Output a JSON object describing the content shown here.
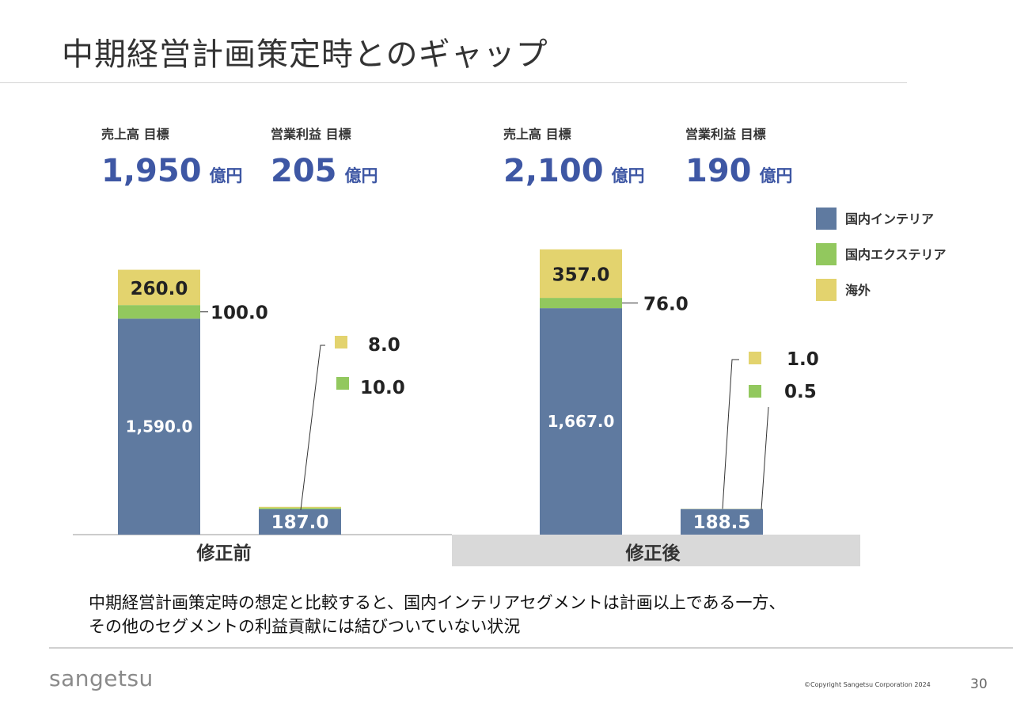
{
  "slide": {
    "title": "中期経営計画策定時とのギャップ",
    "note_line1": "中期経営計画策定時の想定と比較すると、国内インテリアセグメントは計画以上である一方、",
    "note_line2": "その他のセグメントの利益貢献には結びついていない状況",
    "logo": "sangetsu",
    "copyright": "©Copyright Sangetsu Corporation 2024",
    "page_number": "30"
  },
  "kpis": [
    {
      "label": "売上高 目標",
      "value": "1,950",
      "unit": "億円"
    },
    {
      "label": "営業利益 目標",
      "value": "205",
      "unit": "億円"
    },
    {
      "label": "売上高 目標",
      "value": "2,100",
      "unit": "億円"
    },
    {
      "label": "営業利益 目標",
      "value": "190",
      "unit": "億円"
    }
  ],
  "chart_data": {
    "type": "bar",
    "stacked": true,
    "groups": [
      "修正前",
      "修正後"
    ],
    "series": [
      {
        "name": "国内インテリア",
        "color": "#5f7aa0"
      },
      {
        "name": "国内エクステリア",
        "color": "#92c85e"
      },
      {
        "name": "海外",
        "color": "#e3d36e"
      }
    ],
    "bars": [
      {
        "group": "修正前",
        "values": [
          1590.0,
          100.0,
          260.0
        ],
        "labels": [
          "1,590.0",
          "100.0",
          "260.0"
        ]
      },
      {
        "group": "修正前",
        "values": [
          187.0,
          10.0,
          8.0
        ],
        "labels": [
          "187.0",
          "10.0",
          "8.0"
        ]
      },
      {
        "group": "修正後",
        "values": [
          1667.0,
          76.0,
          357.0
        ],
        "labels": [
          "1,667.0",
          "76.0",
          "357.0"
        ]
      },
      {
        "group": "修正後",
        "values": [
          188.5,
          0.5,
          1.0
        ],
        "labels": [
          "188.5",
          "0.5",
          "1.0"
        ]
      }
    ],
    "legend_position": "top-right",
    "grid": false
  }
}
